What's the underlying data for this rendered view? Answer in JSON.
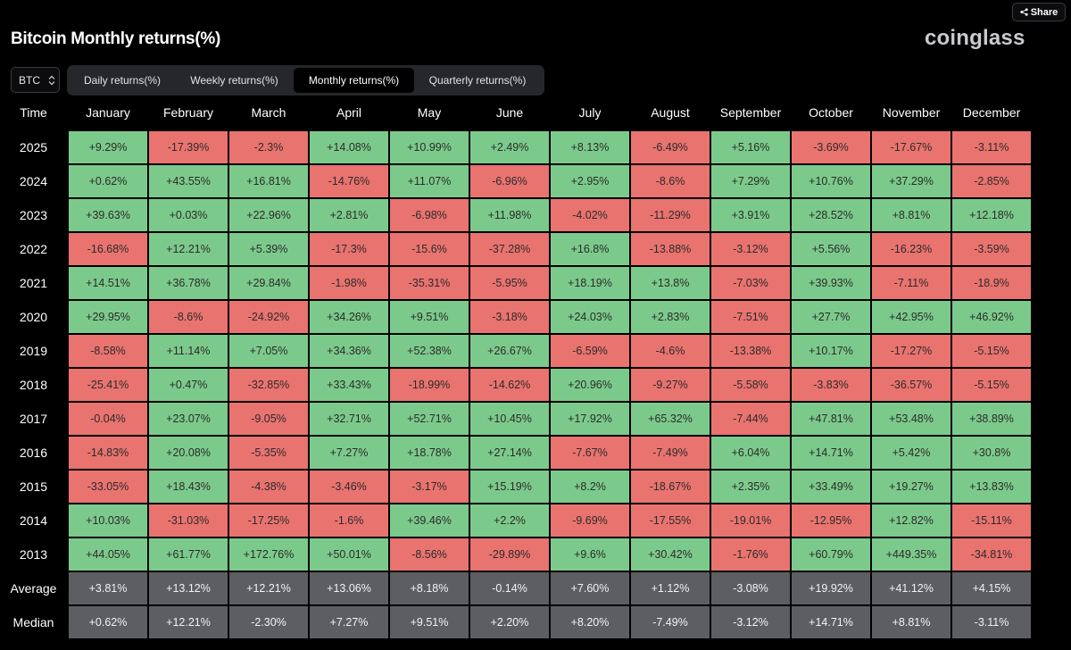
{
  "header": {
    "title": "Bitcoin Monthly returns(%)",
    "logo_text": "coinglass",
    "share_label": "Share"
  },
  "controls": {
    "asset": "BTC",
    "tabs": [
      {
        "label": "Daily returns(%)",
        "active": false
      },
      {
        "label": "Weekly returns(%)",
        "active": false
      },
      {
        "label": "Monthly returns(%)",
        "active": true
      },
      {
        "label": "Quarterly returns(%)",
        "active": false
      }
    ]
  },
  "colors": {
    "positive": "#7cca8b",
    "negative": "#e9736f",
    "summary": "#5d5e61",
    "background": "#000000"
  },
  "table": {
    "columns": [
      "Time",
      "January",
      "February",
      "March",
      "April",
      "May",
      "June",
      "July",
      "August",
      "September",
      "October",
      "November",
      "December"
    ],
    "rows": [
      {
        "label": "2025",
        "values": [
          "+9.29%",
          "-17.39%",
          "-2.3%",
          "+14.08%",
          "+10.99%",
          "+2.49%",
          "+8.13%",
          "-6.49%",
          "+5.16%",
          "-3.69%",
          "-17.67%",
          "-3.11%"
        ]
      },
      {
        "label": "2024",
        "values": [
          "+0.62%",
          "+43.55%",
          "+16.81%",
          "-14.76%",
          "+11.07%",
          "-6.96%",
          "+2.95%",
          "-8.6%",
          "+7.29%",
          "+10.76%",
          "+37.29%",
          "-2.85%"
        ]
      },
      {
        "label": "2023",
        "values": [
          "+39.63%",
          "+0.03%",
          "+22.96%",
          "+2.81%",
          "-6.98%",
          "+11.98%",
          "-4.02%",
          "-11.29%",
          "+3.91%",
          "+28.52%",
          "+8.81%",
          "+12.18%"
        ]
      },
      {
        "label": "2022",
        "values": [
          "-16.68%",
          "+12.21%",
          "+5.39%",
          "-17.3%",
          "-15.6%",
          "-37.28%",
          "+16.8%",
          "-13.88%",
          "-3.12%",
          "+5.56%",
          "-16.23%",
          "-3.59%"
        ]
      },
      {
        "label": "2021",
        "values": [
          "+14.51%",
          "+36.78%",
          "+29.84%",
          "-1.98%",
          "-35.31%",
          "-5.95%",
          "+18.19%",
          "+13.8%",
          "-7.03%",
          "+39.93%",
          "-7.11%",
          "-18.9%"
        ]
      },
      {
        "label": "2020",
        "values": [
          "+29.95%",
          "-8.6%",
          "-24.92%",
          "+34.26%",
          "+9.51%",
          "-3.18%",
          "+24.03%",
          "+2.83%",
          "-7.51%",
          "+27.7%",
          "+42.95%",
          "+46.92%"
        ]
      },
      {
        "label": "2019",
        "values": [
          "-8.58%",
          "+11.14%",
          "+7.05%",
          "+34.36%",
          "+52.38%",
          "+26.67%",
          "-6.59%",
          "-4.6%",
          "-13.38%",
          "+10.17%",
          "-17.27%",
          "-5.15%"
        ]
      },
      {
        "label": "2018",
        "values": [
          "-25.41%",
          "+0.47%",
          "-32.85%",
          "+33.43%",
          "-18.99%",
          "-14.62%",
          "+20.96%",
          "-9.27%",
          "-5.58%",
          "-3.83%",
          "-36.57%",
          "-5.15%"
        ]
      },
      {
        "label": "2017",
        "values": [
          "-0.04%",
          "+23.07%",
          "-9.05%",
          "+32.71%",
          "+52.71%",
          "+10.45%",
          "+17.92%",
          "+65.32%",
          "-7.44%",
          "+47.81%",
          "+53.48%",
          "+38.89%"
        ]
      },
      {
        "label": "2016",
        "values": [
          "-14.83%",
          "+20.08%",
          "-5.35%",
          "+7.27%",
          "+18.78%",
          "+27.14%",
          "-7.67%",
          "-7.49%",
          "+6.04%",
          "+14.71%",
          "+5.42%",
          "+30.8%"
        ]
      },
      {
        "label": "2015",
        "values": [
          "-33.05%",
          "+18.43%",
          "-4.38%",
          "-3.46%",
          "-3.17%",
          "+15.19%",
          "+8.2%",
          "-18.67%",
          "+2.35%",
          "+33.49%",
          "+19.27%",
          "+13.83%"
        ]
      },
      {
        "label": "2014",
        "values": [
          "+10.03%",
          "-31.03%",
          "-17.25%",
          "-1.6%",
          "+39.46%",
          "+2.2%",
          "-9.69%",
          "-17.55%",
          "-19.01%",
          "-12.95%",
          "+12.82%",
          "-15.11%"
        ]
      },
      {
        "label": "2013",
        "values": [
          "+44.05%",
          "+61.77%",
          "+172.76%",
          "+50.01%",
          "-8.56%",
          "-29.89%",
          "+9.6%",
          "+30.42%",
          "-1.76%",
          "+60.79%",
          "+449.35%",
          "-34.81%"
        ]
      }
    ],
    "summary": [
      {
        "label": "Average",
        "values": [
          "+3.81%",
          "+13.12%",
          "+12.21%",
          "+13.06%",
          "+8.18%",
          "-0.14%",
          "+7.60%",
          "+1.12%",
          "-3.08%",
          "+19.92%",
          "+41.12%",
          "+4.15%"
        ]
      },
      {
        "label": "Median",
        "values": [
          "+0.62%",
          "+12.21%",
          "-2.30%",
          "+7.27%",
          "+9.51%",
          "+2.20%",
          "+8.20%",
          "-7.49%",
          "-3.12%",
          "+14.71%",
          "+8.81%",
          "-3.11%"
        ]
      }
    ]
  }
}
